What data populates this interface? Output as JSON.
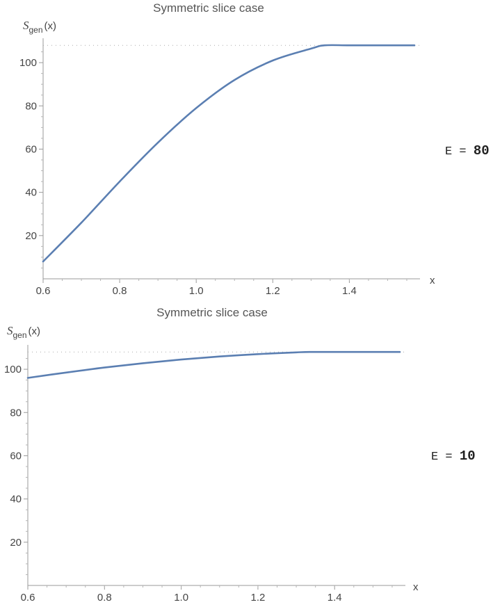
{
  "chart_data": [
    {
      "type": "line",
      "title": "Symmetric slice case",
      "ylabel_symbol": "S",
      "ylabel_subscript": "gen",
      "ylabel_arg": "(x)",
      "xlabel": "x",
      "xlim": [
        0.6,
        1.57
      ],
      "ylim": [
        0,
        110
      ],
      "xticks": [
        "0.6",
        "0.8",
        "1.0",
        "1.2",
        "1.4"
      ],
      "yticks": [
        "20",
        "40",
        "60",
        "80",
        "100"
      ],
      "reference_line": 108,
      "grid": false,
      "line_color": "#5b7fb2",
      "side_label": {
        "prefix": "E",
        "eq": "=",
        "value": "80"
      },
      "series": [
        {
          "x": [
            0.6,
            0.7,
            0.8,
            0.9,
            1.0,
            1.1,
            1.2,
            1.3,
            1.335,
            1.4,
            1.5,
            1.57
          ],
          "values": [
            8,
            26,
            45,
            63,
            79,
            92,
            101,
            106.5,
            108,
            108,
            108,
            108
          ]
        }
      ]
    },
    {
      "type": "line",
      "title": "Symmetric slice case",
      "ylabel_symbol": "S",
      "ylabel_subscript": "gen",
      "ylabel_arg": "(x)",
      "xlabel": "x",
      "xlim": [
        0.6,
        1.57
      ],
      "ylim": [
        0,
        110
      ],
      "xticks": [
        "0.6",
        "0.8",
        "1.0",
        "1.2",
        "1.4"
      ],
      "yticks": [
        "20",
        "40",
        "60",
        "80",
        "100"
      ],
      "reference_line": 108,
      "grid": false,
      "line_color": "#5b7fb2",
      "side_label": {
        "prefix": "E",
        "eq": "=",
        "value": "10"
      },
      "series": [
        {
          "x": [
            0.6,
            0.7,
            0.8,
            0.9,
            1.0,
            1.1,
            1.2,
            1.3,
            1.335,
            1.4,
            1.5,
            1.57
          ],
          "values": [
            96,
            98.5,
            100.8,
            102.8,
            104.5,
            105.9,
            107,
            107.8,
            108,
            108,
            108,
            108
          ]
        }
      ]
    }
  ]
}
